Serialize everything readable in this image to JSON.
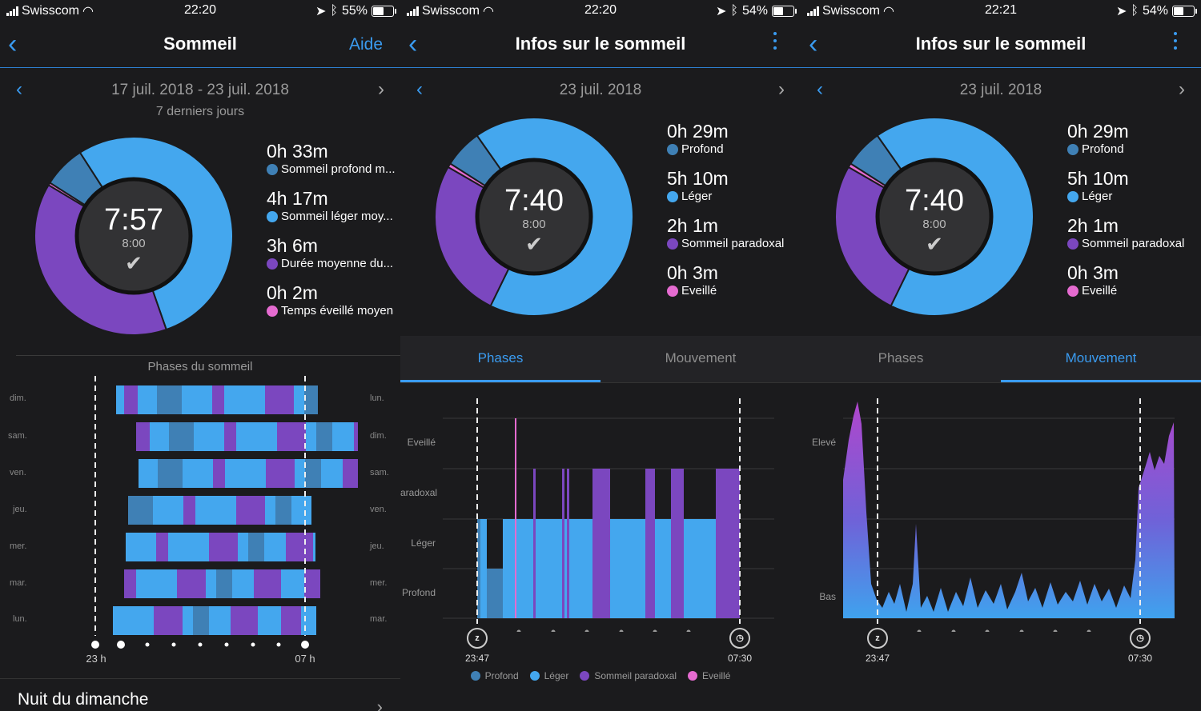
{
  "colors": {
    "deep": "#3f80b5",
    "light": "#44a7ee",
    "rem": "#7b47bf",
    "awake": "#e56bd0",
    "accent": "#3a9bf0"
  },
  "panels": [
    {
      "status": {
        "carrier": "Swisscom",
        "time": "22:20",
        "battery": "55%"
      },
      "nav": {
        "title": "Sommeil",
        "action": "Aide"
      },
      "date": "17 juil. 2018 - 23 juil. 2018",
      "subtitle": "7 derniers jours",
      "center": {
        "time": "7:57",
        "goal": "8:00"
      },
      "stats": [
        {
          "value": "0h 33m",
          "label": "Sommeil profond m..."
        },
        {
          "value": "4h 17m",
          "label": "Sommeil léger moy..."
        },
        {
          "value": "3h 6m",
          "label": "Durée moyenne du..."
        },
        {
          "value": "0h 2m",
          "label": "Temps éveillé moyen"
        }
      ],
      "phases_title": "Phases du sommeil",
      "left_days": [
        "dim.",
        "sam.",
        "ven.",
        "jeu.",
        "mer.",
        "mar.",
        "lun."
      ],
      "right_days": [
        "lun.",
        "dim.",
        "sam.",
        "ven.",
        "jeu.",
        "mer.",
        "mar."
      ],
      "start_label": "23 h",
      "end_label": "07 h",
      "bottom_title": "Nuit du dimanche"
    },
    {
      "status": {
        "carrier": "Swisscom",
        "time": "22:20",
        "battery": "54%"
      },
      "nav": {
        "title": "Infos sur le sommeil"
      },
      "date": "23 juil. 2018",
      "center": {
        "time": "7:40",
        "goal": "8:00"
      },
      "stats": [
        {
          "value": "0h 29m",
          "label": "Profond"
        },
        {
          "value": "5h 10m",
          "label": "Léger"
        },
        {
          "value": "2h 1m",
          "label": "Sommeil paradoxal"
        },
        {
          "value": "0h 3m",
          "label": "Eveillé"
        }
      ],
      "tabs": [
        "Phases",
        "Mouvement"
      ],
      "y_labels": [
        "Eveillé",
        "aradoxal",
        "Léger",
        "Profond"
      ],
      "start_time": "23:47",
      "end_time": "07:30",
      "legend": [
        "Profond",
        "Léger",
        "Sommeil paradoxal",
        "Eveillé"
      ]
    },
    {
      "status": {
        "carrier": "Swisscom",
        "time": "22:21",
        "battery": "54%"
      },
      "nav": {
        "title": "Infos sur le sommeil"
      },
      "date": "23 juil. 2018",
      "center": {
        "time": "7:40",
        "goal": "8:00"
      },
      "stats": [
        {
          "value": "0h 29m",
          "label": "Profond"
        },
        {
          "value": "5h 10m",
          "label": "Léger"
        },
        {
          "value": "2h 1m",
          "label": "Sommeil paradoxal"
        },
        {
          "value": "0h 3m",
          "label": "Eveillé"
        }
      ],
      "tabs": [
        "Phases",
        "Mouvement"
      ],
      "y_labels": [
        "Elevé",
        "Bas"
      ],
      "start_time": "23:47",
      "end_time": "07:30"
    }
  ]
}
